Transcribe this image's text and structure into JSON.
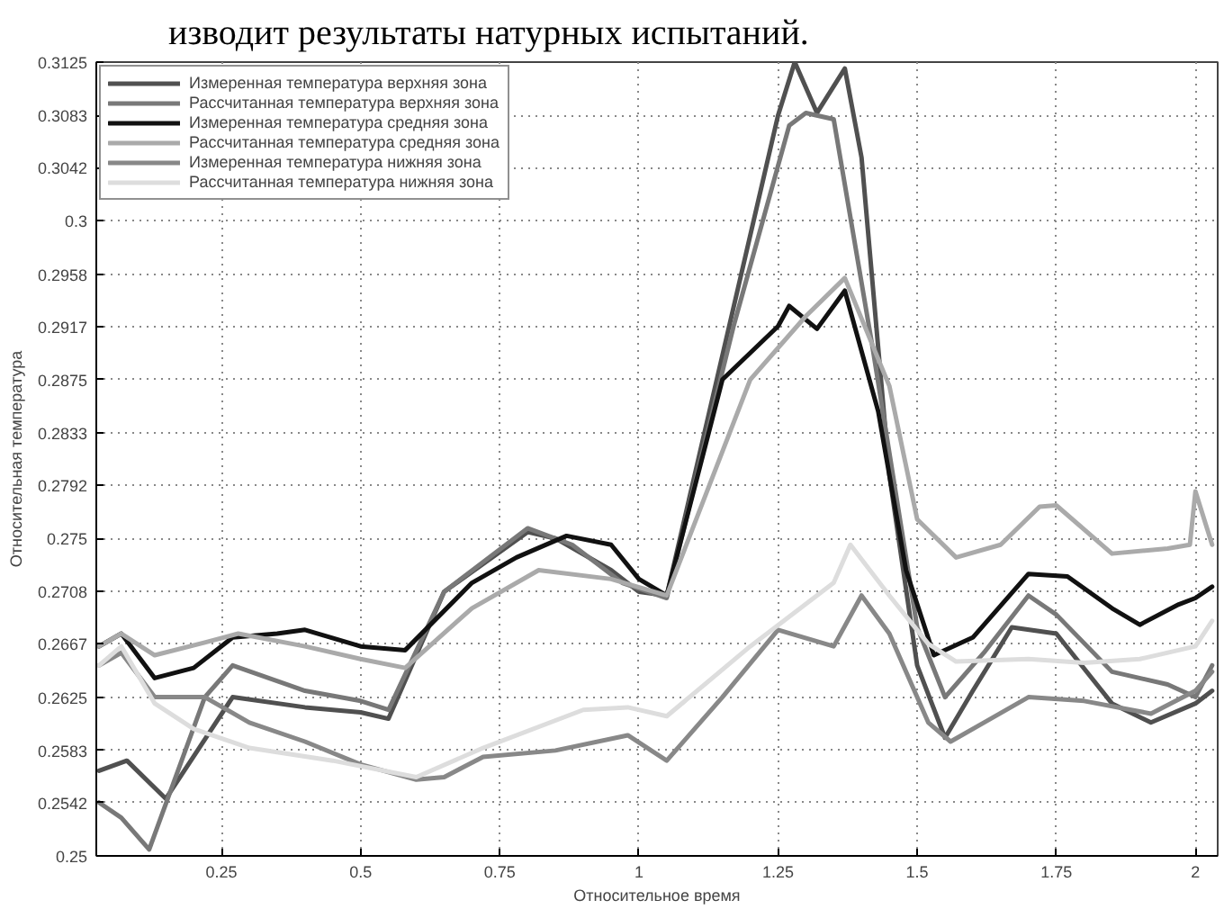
{
  "chart_data": {
    "type": "line",
    "xlabel": "Относительное время",
    "ylabel": "Относительная температура",
    "annotations": [
      "изводит результаты натурных испытаний."
    ],
    "xlim": [
      0.025,
      2.04
    ],
    "ylim": [
      0.25,
      0.3125
    ],
    "xticks": [
      0.25,
      0.5,
      0.75,
      1,
      1.25,
      1.5,
      1.75,
      2
    ],
    "yticks": [
      0.25,
      0.2542,
      0.2583,
      0.2625,
      0.2667,
      0.2708,
      0.275,
      0.2792,
      0.2833,
      0.2875,
      0.2917,
      0.2958,
      0.3,
      0.3042,
      0.3083,
      0.3125
    ],
    "grid": true,
    "legend": "top left",
    "marker": "none",
    "line_style": "solid",
    "series": [
      {
        "name": "Измеренная температура верхняя зона",
        "color": "#505050",
        "x": [
          0.03,
          0.08,
          0.15,
          0.27,
          0.4,
          0.5,
          0.55,
          0.65,
          0.8,
          0.85,
          0.95,
          1.0,
          1.05,
          1.25,
          1.28,
          1.32,
          1.37,
          1.4,
          1.45,
          1.5,
          1.55,
          1.6,
          1.67,
          1.75,
          1.85,
          1.92,
          2.0,
          2.03
        ],
        "values": [
          0.2567,
          0.2575,
          0.2545,
          0.2625,
          0.2617,
          0.2613,
          0.2608,
          0.2708,
          0.2755,
          0.275,
          0.2725,
          0.2708,
          0.2705,
          0.3083,
          0.3125,
          0.3085,
          0.312,
          0.305,
          0.28,
          0.265,
          0.2593,
          0.263,
          0.268,
          0.2675,
          0.262,
          0.2605,
          0.262,
          0.263
        ]
      },
      {
        "name": "Рассчитанная температура верхняя зона",
        "color": "#787878",
        "x": [
          0.03,
          0.07,
          0.12,
          0.22,
          0.27,
          0.4,
          0.5,
          0.55,
          0.65,
          0.8,
          0.88,
          0.97,
          1.05,
          1.17,
          1.27,
          1.3,
          1.35,
          1.42,
          1.5,
          1.55,
          1.62,
          1.7,
          1.75,
          1.85,
          1.95,
          2.0,
          2.03
        ],
        "values": [
          0.2542,
          0.253,
          0.2505,
          0.2625,
          0.265,
          0.263,
          0.2622,
          0.2615,
          0.2708,
          0.2758,
          0.2745,
          0.2715,
          0.2703,
          0.2917,
          0.3075,
          0.3085,
          0.308,
          0.29,
          0.268,
          0.2625,
          0.266,
          0.2705,
          0.269,
          0.2645,
          0.2635,
          0.2625,
          0.265
        ]
      },
      {
        "name": "Измеренная температура средняя зона",
        "color": "#111111",
        "x": [
          0.03,
          0.07,
          0.13,
          0.2,
          0.27,
          0.35,
          0.4,
          0.5,
          0.58,
          0.7,
          0.78,
          0.87,
          0.95,
          1.0,
          1.05,
          1.15,
          1.25,
          1.27,
          1.32,
          1.37,
          1.43,
          1.48,
          1.53,
          1.6,
          1.7,
          1.77,
          1.85,
          1.9,
          1.97,
          2.0,
          2.03
        ],
        "values": [
          0.2665,
          0.2675,
          0.264,
          0.2648,
          0.2672,
          0.2675,
          0.2678,
          0.2665,
          0.2662,
          0.2715,
          0.2735,
          0.2752,
          0.2745,
          0.2718,
          0.2705,
          0.2875,
          0.2917,
          0.2933,
          0.2915,
          0.2945,
          0.285,
          0.2725,
          0.2658,
          0.2672,
          0.2722,
          0.272,
          0.2695,
          0.2682,
          0.2698,
          0.2703,
          0.2712
        ]
      },
      {
        "name": "Рассчитанная температура средняя зона",
        "color": "#aaaaaa",
        "x": [
          0.03,
          0.07,
          0.13,
          0.22,
          0.28,
          0.4,
          0.5,
          0.58,
          0.7,
          0.82,
          0.95,
          1.05,
          1.2,
          1.3,
          1.37,
          1.45,
          1.5,
          1.57,
          1.65,
          1.72,
          1.75,
          1.85,
          1.95,
          1.99,
          2.0,
          2.03
        ],
        "values": [
          0.2665,
          0.2675,
          0.2658,
          0.2668,
          0.2675,
          0.2665,
          0.2655,
          0.2648,
          0.2695,
          0.2725,
          0.2718,
          0.2705,
          0.2875,
          0.2925,
          0.2955,
          0.287,
          0.2765,
          0.2735,
          0.2745,
          0.2775,
          0.2776,
          0.2738,
          0.2742,
          0.2745,
          0.2787,
          0.2745
        ]
      },
      {
        "name": "Измеренная температура нижняя зона",
        "color": "#888888",
        "x": [
          0.03,
          0.07,
          0.13,
          0.22,
          0.3,
          0.4,
          0.5,
          0.6,
          0.65,
          0.72,
          0.85,
          0.98,
          1.05,
          1.15,
          1.25,
          1.35,
          1.4,
          1.45,
          1.52,
          1.56,
          1.62,
          1.7,
          1.8,
          1.92,
          2.0,
          2.03
        ],
        "values": [
          0.265,
          0.266,
          0.2625,
          0.2625,
          0.2605,
          0.259,
          0.2572,
          0.256,
          0.2562,
          0.2578,
          0.2583,
          0.2595,
          0.2575,
          0.2625,
          0.2678,
          0.2665,
          0.2705,
          0.2675,
          0.2605,
          0.259,
          0.2605,
          0.2625,
          0.2622,
          0.2612,
          0.263,
          0.2645
        ]
      },
      {
        "name": "Рассчитанная температура нижняя зона",
        "color": "#dddddd",
        "x": [
          0.03,
          0.07,
          0.13,
          0.2,
          0.3,
          0.45,
          0.6,
          0.72,
          0.9,
          0.98,
          1.05,
          1.2,
          1.35,
          1.38,
          1.45,
          1.52,
          1.57,
          1.7,
          1.8,
          1.9,
          2.0,
          2.03
        ],
        "values": [
          0.265,
          0.2665,
          0.262,
          0.26,
          0.2585,
          0.2575,
          0.2562,
          0.2585,
          0.2615,
          0.2617,
          0.261,
          0.2665,
          0.2715,
          0.2745,
          0.2705,
          0.2667,
          0.2653,
          0.2655,
          0.2652,
          0.2655,
          0.2665,
          0.2685
        ]
      }
    ]
  }
}
